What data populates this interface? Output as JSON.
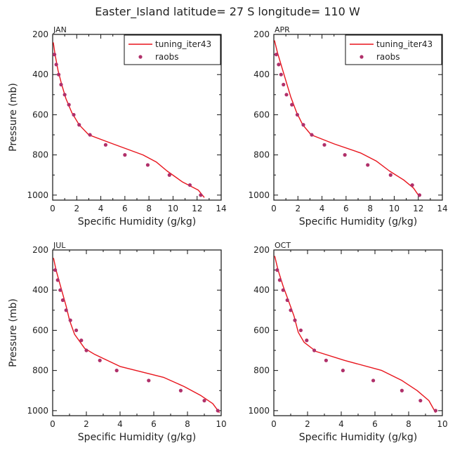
{
  "title": "Easter_Island   latitude= 27 S longitude= 110 W",
  "colors": {
    "model_line": "#e8141c",
    "obs_marker": "#b0306a",
    "axis": "#111111"
  },
  "chart_data": [
    {
      "type": "line",
      "panel": "JAN",
      "xlabel": "Specific Humidity (g/kg)",
      "ylabel": "Pressure (mb)",
      "xlim": [
        0,
        14
      ],
      "ylim": [
        1025,
        200
      ],
      "xticks": [
        0,
        2,
        4,
        6,
        8,
        10,
        12,
        14
      ],
      "yticks": [
        200,
        400,
        600,
        800,
        1000
      ],
      "legend": "top-right",
      "series": [
        {
          "name": "tuning_iter43",
          "kind": "line",
          "points": [
            [
              0.05,
              240
            ],
            [
              0.2,
              300
            ],
            [
              0.45,
              380
            ],
            [
              0.75,
              450
            ],
            [
              1.1,
              520
            ],
            [
              1.6,
              590
            ],
            [
              2.2,
              650
            ],
            [
              3.0,
              700
            ],
            [
              5.0,
              745
            ],
            [
              7.5,
              800
            ],
            [
              8.6,
              835
            ],
            [
              9.5,
              880
            ],
            [
              10.8,
              935
            ],
            [
              12.1,
              975
            ],
            [
              12.6,
              1012
            ]
          ]
        },
        {
          "name": "raobs",
          "kind": "scatter",
          "points": [
            [
              0.15,
              300
            ],
            [
              0.3,
              350
            ],
            [
              0.5,
              400
            ],
            [
              0.7,
              450
            ],
            [
              1.0,
              500
            ],
            [
              1.35,
              550
            ],
            [
              1.75,
              600
            ],
            [
              2.2,
              650
            ],
            [
              3.1,
              700
            ],
            [
              4.4,
              750
            ],
            [
              6.0,
              800
            ],
            [
              7.9,
              850
            ],
            [
              9.7,
              900
            ],
            [
              11.4,
              950
            ],
            [
              12.3,
              1000
            ]
          ]
        }
      ]
    },
    {
      "type": "line",
      "panel": "APR",
      "xlabel": "Specific Humidity (g/kg)",
      "ylabel": "",
      "xlim": [
        0,
        14
      ],
      "ylim": [
        1025,
        200
      ],
      "xticks": [
        0,
        2,
        4,
        6,
        8,
        10,
        12,
        14
      ],
      "yticks": [
        200,
        400,
        600,
        800,
        1000
      ],
      "legend": "top-right",
      "series": [
        {
          "name": "tuning_iter43",
          "kind": "line",
          "points": [
            [
              0.05,
              230
            ],
            [
              0.3,
              290
            ],
            [
              0.65,
              360
            ],
            [
              1.0,
              430
            ],
            [
              1.4,
              510
            ],
            [
              1.9,
              590
            ],
            [
              2.4,
              650
            ],
            [
              3.1,
              700
            ],
            [
              5.0,
              745
            ],
            [
              7.2,
              790
            ],
            [
              8.5,
              830
            ],
            [
              9.6,
              880
            ],
            [
              10.8,
              925
            ],
            [
              11.6,
              965
            ],
            [
              12.1,
              1008
            ]
          ]
        },
        {
          "name": "raobs",
          "kind": "scatter",
          "points": [
            [
              0.2,
              300
            ],
            [
              0.4,
              350
            ],
            [
              0.6,
              400
            ],
            [
              0.8,
              450
            ],
            [
              1.05,
              500
            ],
            [
              1.5,
              550
            ],
            [
              1.95,
              600
            ],
            [
              2.45,
              650
            ],
            [
              3.15,
              700
            ],
            [
              4.2,
              750
            ],
            [
              5.9,
              800
            ],
            [
              7.8,
              850
            ],
            [
              9.7,
              900
            ],
            [
              11.5,
              950
            ],
            [
              12.1,
              1000
            ]
          ]
        }
      ]
    },
    {
      "type": "line",
      "panel": "JUL",
      "xlabel": "Specific Humidity (g/kg)",
      "ylabel": "Pressure (mb)",
      "xlim": [
        0,
        10
      ],
      "ylim": [
        1025,
        200
      ],
      "xticks": [
        0,
        2,
        4,
        6,
        8,
        10
      ],
      "yticks": [
        200,
        400,
        600,
        800,
        1000
      ],
      "legend": "",
      "series": [
        {
          "name": "tuning_iter43",
          "kind": "line",
          "points": [
            [
              0.05,
              240
            ],
            [
              0.2,
              300
            ],
            [
              0.4,
              360
            ],
            [
              0.6,
              420
            ],
            [
              0.8,
              480
            ],
            [
              1.0,
              550
            ],
            [
              1.3,
              620
            ],
            [
              1.9,
              690
            ],
            [
              2.5,
              720
            ],
            [
              4.0,
              780
            ],
            [
              6.6,
              835
            ],
            [
              7.8,
              880
            ],
            [
              8.8,
              925
            ],
            [
              9.5,
              965
            ],
            [
              9.9,
              1010
            ]
          ]
        },
        {
          "name": "raobs",
          "kind": "scatter",
          "points": [
            [
              0.15,
              300
            ],
            [
              0.3,
              350
            ],
            [
              0.45,
              400
            ],
            [
              0.6,
              450
            ],
            [
              0.8,
              500
            ],
            [
              1.05,
              550
            ],
            [
              1.4,
              600
            ],
            [
              1.7,
              650
            ],
            [
              2.0,
              700
            ],
            [
              2.8,
              750
            ],
            [
              3.8,
              800
            ],
            [
              5.7,
              850
            ],
            [
              7.6,
              900
            ],
            [
              9.0,
              950
            ],
            [
              9.8,
              1000
            ]
          ]
        }
      ]
    },
    {
      "type": "line",
      "panel": "OCT",
      "xlabel": "Specific Humidity (g/kg)",
      "ylabel": "",
      "xlim": [
        0,
        10
      ],
      "ylim": [
        1025,
        200
      ],
      "xticks": [
        0,
        2,
        4,
        6,
        8,
        10
      ],
      "yticks": [
        200,
        400,
        600,
        800,
        1000
      ],
      "legend": "",
      "series": [
        {
          "name": "tuning_iter43",
          "kind": "line",
          "points": [
            [
              0.05,
              230
            ],
            [
              0.25,
              300
            ],
            [
              0.55,
              380
            ],
            [
              0.9,
              460
            ],
            [
              1.2,
              530
            ],
            [
              1.45,
              610
            ],
            [
              1.8,
              660
            ],
            [
              2.5,
              705
            ],
            [
              4.2,
              750
            ],
            [
              6.4,
              800
            ],
            [
              7.6,
              850
            ],
            [
              8.5,
              900
            ],
            [
              9.2,
              950
            ],
            [
              9.6,
              1010
            ]
          ]
        },
        {
          "name": "raobs",
          "kind": "scatter",
          "points": [
            [
              0.2,
              300
            ],
            [
              0.35,
              350
            ],
            [
              0.55,
              400
            ],
            [
              0.8,
              450
            ],
            [
              1.0,
              500
            ],
            [
              1.25,
              550
            ],
            [
              1.6,
              600
            ],
            [
              1.95,
              650
            ],
            [
              2.4,
              700
            ],
            [
              3.1,
              750
            ],
            [
              4.1,
              800
            ],
            [
              5.9,
              850
            ],
            [
              7.6,
              900
            ],
            [
              8.7,
              950
            ],
            [
              9.6,
              1000
            ]
          ]
        }
      ]
    }
  ]
}
